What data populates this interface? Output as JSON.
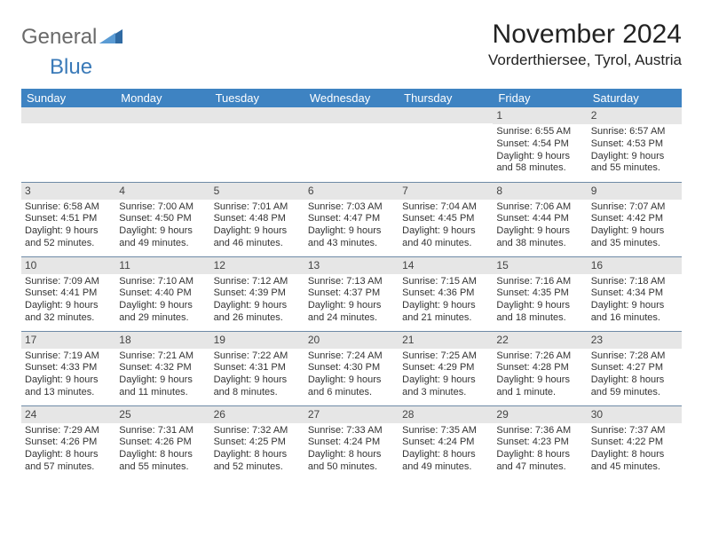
{
  "brand": {
    "part1": "General",
    "part2": "Blue"
  },
  "title": "November 2024",
  "location": "Vorderthiersee, Tyrol, Austria",
  "colors": {
    "header_bg": "#3e83c2",
    "header_text": "#ffffff",
    "daynum_bg": "#e6e6e6",
    "rule": "#6e8aa6",
    "text": "#333333",
    "brand_blue": "#3a7ab8"
  },
  "weekdays": [
    "Sunday",
    "Monday",
    "Tuesday",
    "Wednesday",
    "Thursday",
    "Friday",
    "Saturday"
  ],
  "weeks": [
    [
      null,
      null,
      null,
      null,
      null,
      {
        "n": "1",
        "sr": "Sunrise: 6:55 AM",
        "ss": "Sunset: 4:54 PM",
        "d1": "Daylight: 9 hours",
        "d2": "and 58 minutes."
      },
      {
        "n": "2",
        "sr": "Sunrise: 6:57 AM",
        "ss": "Sunset: 4:53 PM",
        "d1": "Daylight: 9 hours",
        "d2": "and 55 minutes."
      }
    ],
    [
      {
        "n": "3",
        "sr": "Sunrise: 6:58 AM",
        "ss": "Sunset: 4:51 PM",
        "d1": "Daylight: 9 hours",
        "d2": "and 52 minutes."
      },
      {
        "n": "4",
        "sr": "Sunrise: 7:00 AM",
        "ss": "Sunset: 4:50 PM",
        "d1": "Daylight: 9 hours",
        "d2": "and 49 minutes."
      },
      {
        "n": "5",
        "sr": "Sunrise: 7:01 AM",
        "ss": "Sunset: 4:48 PM",
        "d1": "Daylight: 9 hours",
        "d2": "and 46 minutes."
      },
      {
        "n": "6",
        "sr": "Sunrise: 7:03 AM",
        "ss": "Sunset: 4:47 PM",
        "d1": "Daylight: 9 hours",
        "d2": "and 43 minutes."
      },
      {
        "n": "7",
        "sr": "Sunrise: 7:04 AM",
        "ss": "Sunset: 4:45 PM",
        "d1": "Daylight: 9 hours",
        "d2": "and 40 minutes."
      },
      {
        "n": "8",
        "sr": "Sunrise: 7:06 AM",
        "ss": "Sunset: 4:44 PM",
        "d1": "Daylight: 9 hours",
        "d2": "and 38 minutes."
      },
      {
        "n": "9",
        "sr": "Sunrise: 7:07 AM",
        "ss": "Sunset: 4:42 PM",
        "d1": "Daylight: 9 hours",
        "d2": "and 35 minutes."
      }
    ],
    [
      {
        "n": "10",
        "sr": "Sunrise: 7:09 AM",
        "ss": "Sunset: 4:41 PM",
        "d1": "Daylight: 9 hours",
        "d2": "and 32 minutes."
      },
      {
        "n": "11",
        "sr": "Sunrise: 7:10 AM",
        "ss": "Sunset: 4:40 PM",
        "d1": "Daylight: 9 hours",
        "d2": "and 29 minutes."
      },
      {
        "n": "12",
        "sr": "Sunrise: 7:12 AM",
        "ss": "Sunset: 4:39 PM",
        "d1": "Daylight: 9 hours",
        "d2": "and 26 minutes."
      },
      {
        "n": "13",
        "sr": "Sunrise: 7:13 AM",
        "ss": "Sunset: 4:37 PM",
        "d1": "Daylight: 9 hours",
        "d2": "and 24 minutes."
      },
      {
        "n": "14",
        "sr": "Sunrise: 7:15 AM",
        "ss": "Sunset: 4:36 PM",
        "d1": "Daylight: 9 hours",
        "d2": "and 21 minutes."
      },
      {
        "n": "15",
        "sr": "Sunrise: 7:16 AM",
        "ss": "Sunset: 4:35 PM",
        "d1": "Daylight: 9 hours",
        "d2": "and 18 minutes."
      },
      {
        "n": "16",
        "sr": "Sunrise: 7:18 AM",
        "ss": "Sunset: 4:34 PM",
        "d1": "Daylight: 9 hours",
        "d2": "and 16 minutes."
      }
    ],
    [
      {
        "n": "17",
        "sr": "Sunrise: 7:19 AM",
        "ss": "Sunset: 4:33 PM",
        "d1": "Daylight: 9 hours",
        "d2": "and 13 minutes."
      },
      {
        "n": "18",
        "sr": "Sunrise: 7:21 AM",
        "ss": "Sunset: 4:32 PM",
        "d1": "Daylight: 9 hours",
        "d2": "and 11 minutes."
      },
      {
        "n": "19",
        "sr": "Sunrise: 7:22 AM",
        "ss": "Sunset: 4:31 PM",
        "d1": "Daylight: 9 hours",
        "d2": "and 8 minutes."
      },
      {
        "n": "20",
        "sr": "Sunrise: 7:24 AM",
        "ss": "Sunset: 4:30 PM",
        "d1": "Daylight: 9 hours",
        "d2": "and 6 minutes."
      },
      {
        "n": "21",
        "sr": "Sunrise: 7:25 AM",
        "ss": "Sunset: 4:29 PM",
        "d1": "Daylight: 9 hours",
        "d2": "and 3 minutes."
      },
      {
        "n": "22",
        "sr": "Sunrise: 7:26 AM",
        "ss": "Sunset: 4:28 PM",
        "d1": "Daylight: 9 hours",
        "d2": "and 1 minute."
      },
      {
        "n": "23",
        "sr": "Sunrise: 7:28 AM",
        "ss": "Sunset: 4:27 PM",
        "d1": "Daylight: 8 hours",
        "d2": "and 59 minutes."
      }
    ],
    [
      {
        "n": "24",
        "sr": "Sunrise: 7:29 AM",
        "ss": "Sunset: 4:26 PM",
        "d1": "Daylight: 8 hours",
        "d2": "and 57 minutes."
      },
      {
        "n": "25",
        "sr": "Sunrise: 7:31 AM",
        "ss": "Sunset: 4:26 PM",
        "d1": "Daylight: 8 hours",
        "d2": "and 55 minutes."
      },
      {
        "n": "26",
        "sr": "Sunrise: 7:32 AM",
        "ss": "Sunset: 4:25 PM",
        "d1": "Daylight: 8 hours",
        "d2": "and 52 minutes."
      },
      {
        "n": "27",
        "sr": "Sunrise: 7:33 AM",
        "ss": "Sunset: 4:24 PM",
        "d1": "Daylight: 8 hours",
        "d2": "and 50 minutes."
      },
      {
        "n": "28",
        "sr": "Sunrise: 7:35 AM",
        "ss": "Sunset: 4:24 PM",
        "d1": "Daylight: 8 hours",
        "d2": "and 49 minutes."
      },
      {
        "n": "29",
        "sr": "Sunrise: 7:36 AM",
        "ss": "Sunset: 4:23 PM",
        "d1": "Daylight: 8 hours",
        "d2": "and 47 minutes."
      },
      {
        "n": "30",
        "sr": "Sunrise: 7:37 AM",
        "ss": "Sunset: 4:22 PM",
        "d1": "Daylight: 8 hours",
        "d2": "and 45 minutes."
      }
    ]
  ]
}
